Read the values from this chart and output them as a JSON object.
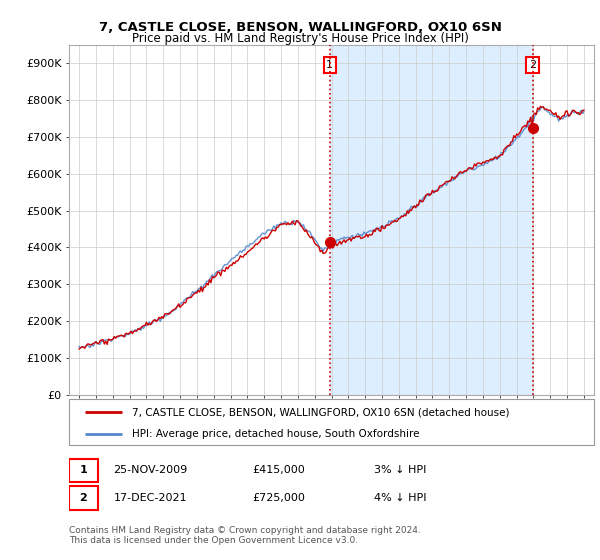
{
  "title": "7, CASTLE CLOSE, BENSON, WALLINGFORD, OX10 6SN",
  "subtitle": "Price paid vs. HM Land Registry's House Price Index (HPI)",
  "ylabel_ticks": [
    "£0",
    "£100K",
    "£200K",
    "£300K",
    "£400K",
    "£500K",
    "£600K",
    "£700K",
    "£800K",
    "£900K"
  ],
  "ytick_values": [
    0,
    100000,
    200000,
    300000,
    400000,
    500000,
    600000,
    700000,
    800000,
    900000
  ],
  "ylim": [
    0,
    950000
  ],
  "x_start_year": 1995,
  "x_end_year": 2025,
  "hpi_color": "#5588cc",
  "price_color": "#cc0000",
  "shade_color": "#ddeeff",
  "sale1_yr": 2009.9,
  "sale1_price": 415000,
  "sale1_pct": "3%",
  "sale1_date": "25-NOV-2009",
  "sale2_yr": 2021.95,
  "sale2_price": 725000,
  "sale2_pct": "4%",
  "sale2_date": "17-DEC-2021",
  "legend_label1": "7, CASTLE CLOSE, BENSON, WALLINGFORD, OX10 6SN (detached house)",
  "legend_label2": "HPI: Average price, detached house, South Oxfordshire",
  "footer": "Contains HM Land Registry data © Crown copyright and database right 2024.\nThis data is licensed under the Open Government Licence v3.0.",
  "grid_color": "#cccccc",
  "spine_color": "#aaaaaa"
}
